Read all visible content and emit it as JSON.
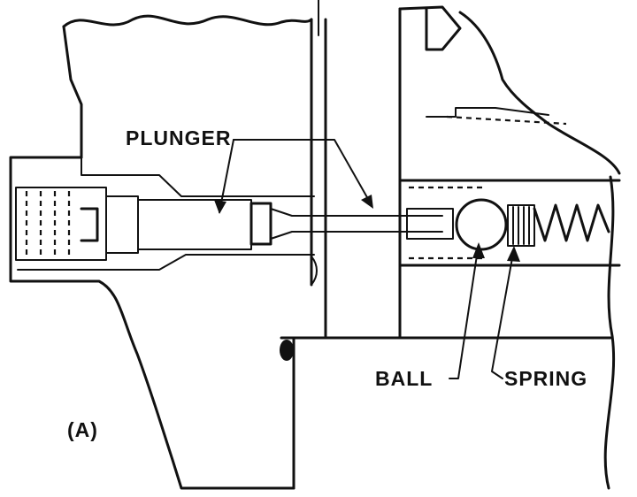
{
  "labels": {
    "plunger": "PLUNGER",
    "ball": "BALL",
    "spring": "SPRING",
    "figure_tag": "(A)"
  },
  "colors": {
    "ink": "#111111",
    "paper": "#ffffff"
  }
}
